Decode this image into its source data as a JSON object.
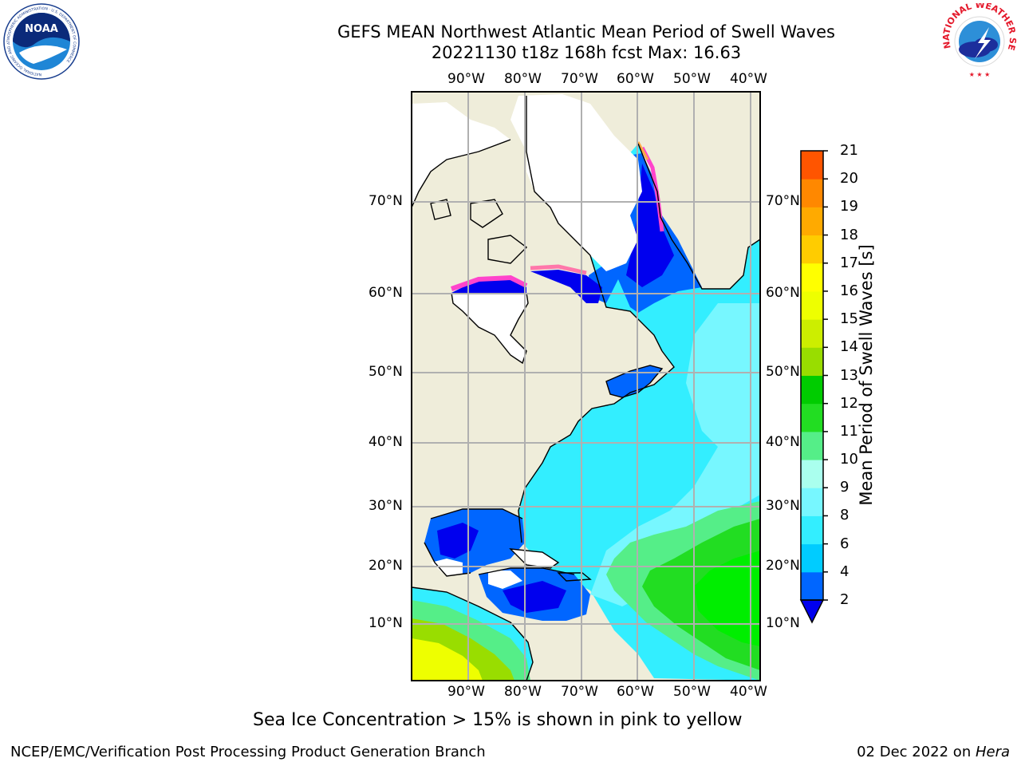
{
  "header": {
    "title_line1": "GEFS MEAN Northwest Atlantic Mean Period of Swell Waves",
    "title_line2": "20221130 t18z 168h fcst   Max: 16.63"
  },
  "logos": {
    "left_name": "NOAA",
    "left_ring_text": "NATIONAL OCEANIC AND ATMOSPHERIC ADMINISTRATION · U.S. DEPARTMENT OF COMMERCE",
    "right_ring_text": "NATIONAL WEATHER SERVICE"
  },
  "map": {
    "lon_labels": [
      "90°W",
      "80°W",
      "70°W",
      "60°W",
      "50°W",
      "40°W"
    ],
    "lat_labels": [
      "70°N",
      "60°N",
      "50°N",
      "40°N",
      "30°N",
      "20°N",
      "10°N"
    ],
    "colors": {
      "land": "#efedda",
      "frame": "#000000",
      "grid": "#b0b0b0"
    }
  },
  "colorbar": {
    "label": "Mean Period of Swell Waves [s]",
    "ticks": [
      "2",
      "4",
      "6",
      "8",
      "9",
      "10",
      "11",
      "12",
      "13",
      "14",
      "15",
      "16",
      "17",
      "18",
      "19",
      "20",
      "21"
    ],
    "colors": [
      "#0066ff",
      "#00ccff",
      "#33eeff",
      "#77f7ff",
      "#aaffee",
      "#55ee88",
      "#22dd22",
      "#00cc00",
      "#99dd00",
      "#ccee00",
      "#eeff00",
      "#ffff00",
      "#ffcc00",
      "#ffaa00",
      "#ff8800",
      "#ff5500",
      "#ff2200",
      "#ff0000"
    ],
    "extend_color": "#0000ee"
  },
  "note": "Sea Ice Concentration > 15% is shown in pink to yellow",
  "footer": {
    "left": "NCEP/EMC/Verification Post Processing Product Generation Branch",
    "date": "02 Dec 2022 on ",
    "machine": "Hera"
  }
}
